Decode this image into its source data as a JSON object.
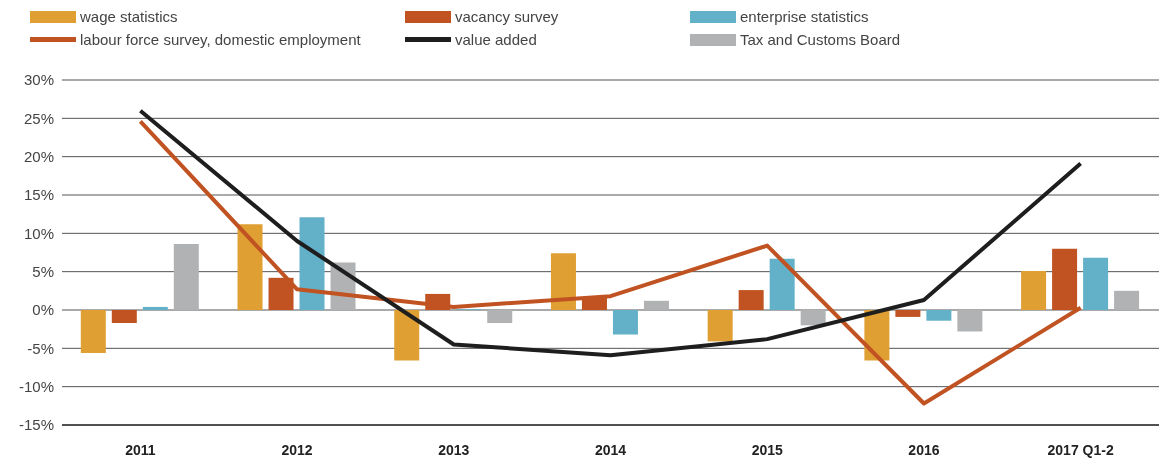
{
  "chart_data": {
    "type": "bar",
    "categories": [
      "2011",
      "2012",
      "2013",
      "2014",
      "2015",
      "2016",
      "2017 Q1-2"
    ],
    "series": [
      {
        "name": "wage statistics",
        "color": "#e09f32",
        "values": [
          -5.6,
          11.2,
          -6.6,
          7.4,
          -4.1,
          -6.6,
          5.1
        ]
      },
      {
        "name": "vacancy survey",
        "color": "#c05321",
        "values": [
          -1.7,
          4.2,
          2.1,
          1.6,
          2.6,
          -0.9,
          8.0
        ]
      },
      {
        "name": "enterprise statistics",
        "color": "#63b1c8",
        "values": [
          0.4,
          12.1,
          0.1,
          -3.2,
          6.7,
          -1.4,
          6.8
        ]
      },
      {
        "name": "labour force survey, domestic employment",
        "type": "line",
        "color": "#c05321",
        "values": [
          24.6,
          2.7,
          0.4,
          1.8,
          8.4,
          -12.2,
          0.3
        ]
      },
      {
        "name": "value added",
        "type": "line",
        "color": "#1e1e1e",
        "values": [
          26.0,
          9.0,
          -4.5,
          -5.9,
          -3.8,
          1.3,
          19.1
        ]
      },
      {
        "name": "Tax and Customs Board",
        "color": "#b1b2b4",
        "values": [
          8.6,
          6.2,
          -1.7,
          1.2,
          -2.0,
          -2.8,
          2.5
        ]
      }
    ],
    "ylim": [
      -15,
      30
    ],
    "yticks": [
      {
        "value": -15,
        "label": "-15%"
      },
      {
        "value": -10,
        "label": "-10%"
      },
      {
        "value": -5,
        "label": "-5%"
      },
      {
        "value": 0,
        "label": "0%"
      },
      {
        "value": 5,
        "label": "5%"
      },
      {
        "value": 10,
        "label": "10%"
      },
      {
        "value": 15,
        "label": "15%"
      },
      {
        "value": 20,
        "label": "20%"
      },
      {
        "value": 25,
        "label": "25%"
      },
      {
        "value": 30,
        "label": "30%"
      }
    ],
    "grid": "y",
    "legend": "top",
    "marker": "none",
    "line_style": "solid"
  }
}
